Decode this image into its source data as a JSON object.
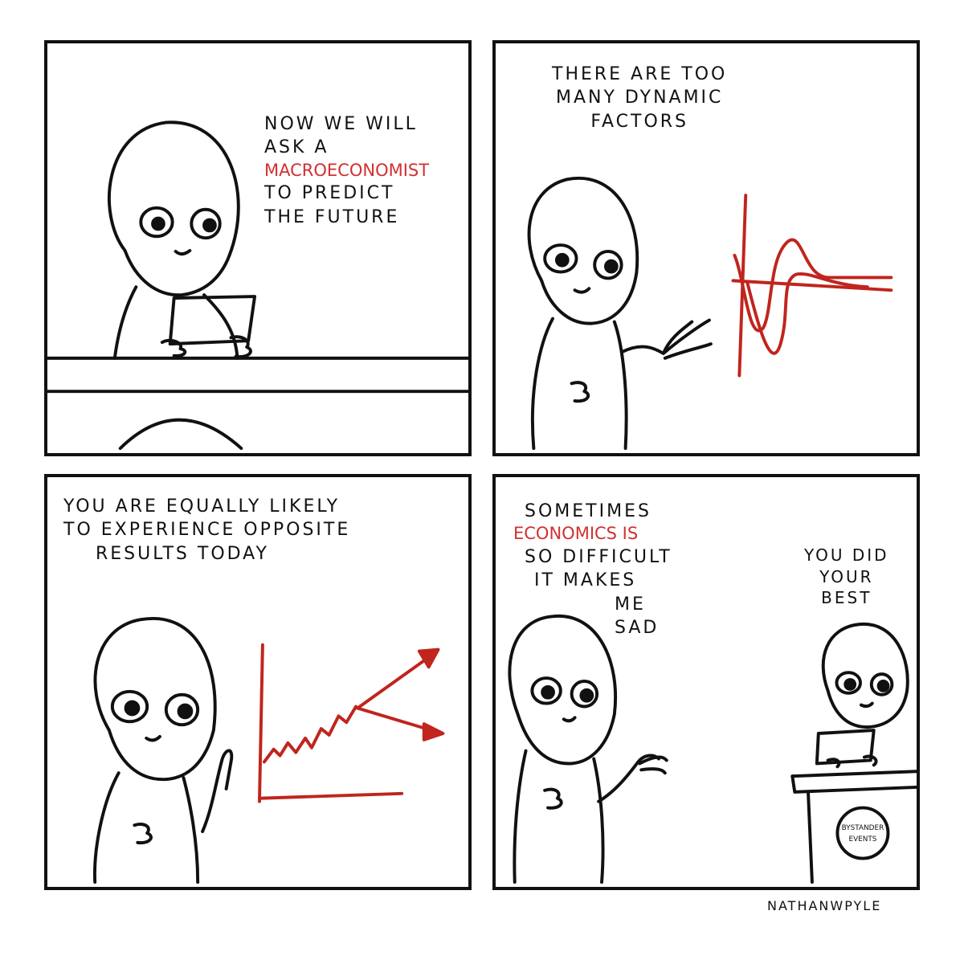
{
  "panels": [
    {
      "caption": [
        "NOW WE WILL",
        "ASK A",
        "MACROECONOMIST",
        "TO PREDICT",
        "THE FUTURE"
      ]
    },
    {
      "caption": [
        "THERE ARE TOO",
        "MANY DYNAMIC",
        "FACTORS"
      ]
    },
    {
      "caption": [
        "YOU ARE EQUALLY LIKELY",
        "TO EXPERIENCE OPPOSITE",
        "RESULTS TODAY"
      ]
    },
    {
      "caption": [
        "SOMETIMES",
        "ECONOMICS IS",
        "SO DIFFICULT",
        "IT MAKES",
        "ME",
        "SAD"
      ],
      "reply": [
        "YOU DID",
        "YOUR",
        "BEST"
      ],
      "podium_badge": [
        "BYSTANDER",
        "EVENTS"
      ]
    }
  ],
  "credit": "NATHANWPYLE",
  "colors": {
    "ink": "#111111",
    "highlight": "#d23030",
    "background": "#ffffff"
  }
}
